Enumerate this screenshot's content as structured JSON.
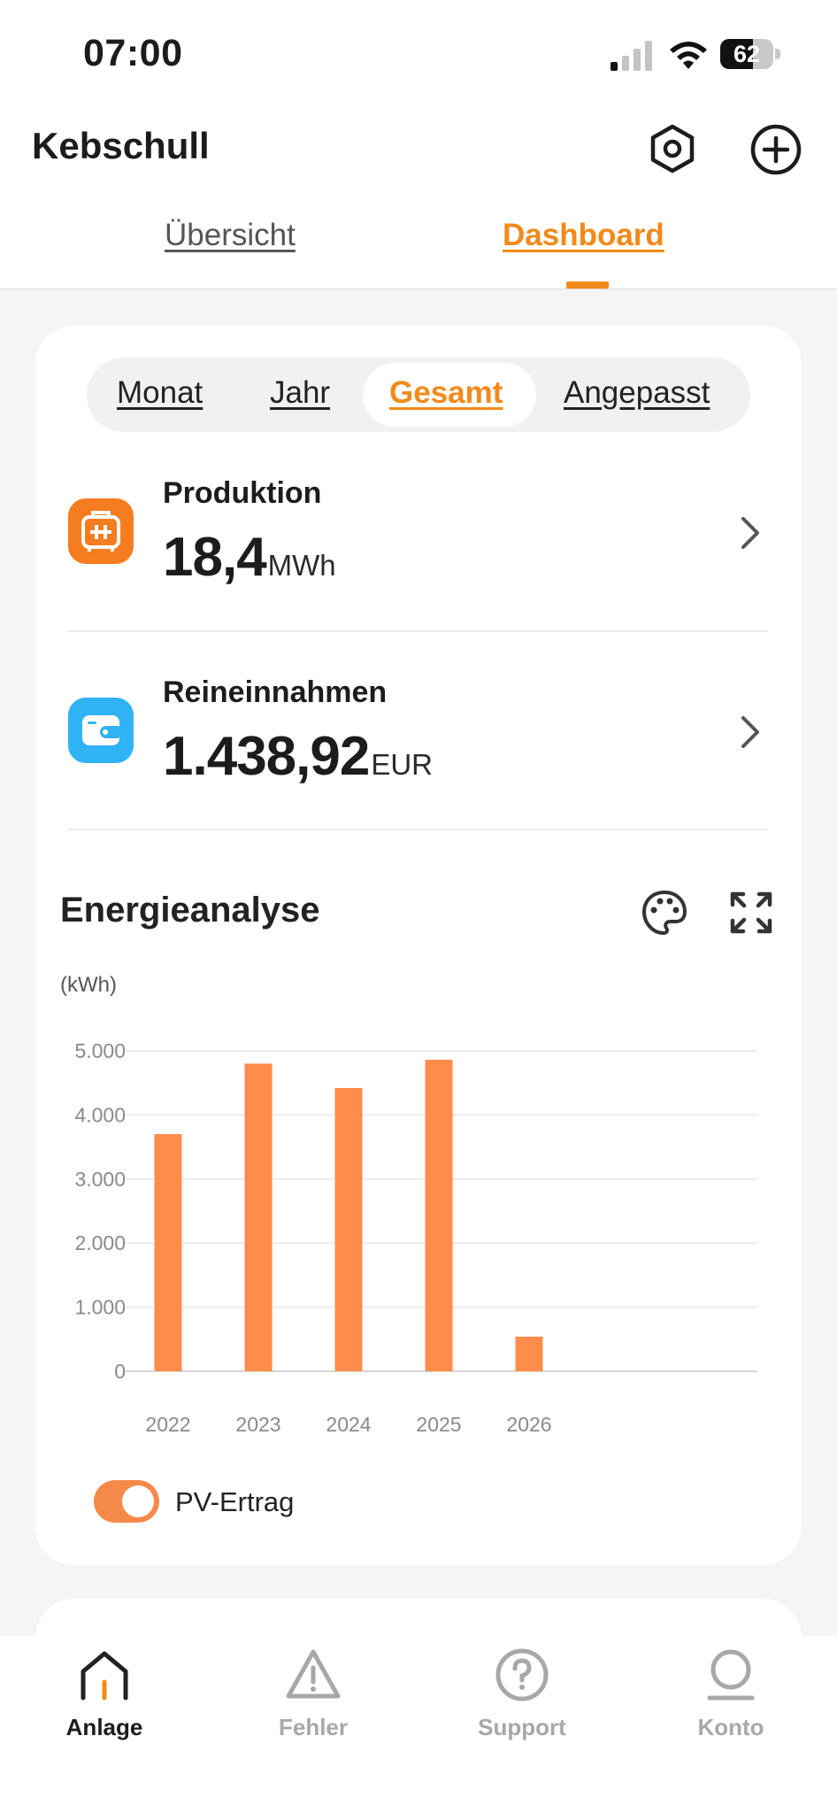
{
  "status_bar": {
    "time": "07:00",
    "battery": "62",
    "battery_level": 0.62
  },
  "header": {
    "title": "Kebschull"
  },
  "icons": {
    "settings": "hexagon-gear-icon",
    "add": "plus-circle-icon",
    "production": "solar-panel-icon",
    "revenue": "wallet-icon",
    "palette": "palette-icon",
    "expand": "expand-icon"
  },
  "tabs": [
    {
      "label": "Übersicht",
      "active": false
    },
    {
      "label": "Dashboard",
      "active": true
    }
  ],
  "period_selector": {
    "options": [
      "Monat",
      "Jahr",
      "Gesamt",
      "Angepasst"
    ],
    "selected": "Gesamt"
  },
  "metrics": {
    "production": {
      "label": "Produktion",
      "value": "18,4",
      "unit": "MWh"
    },
    "revenue": {
      "label": "Reineinnahmen",
      "value": "1.438,92",
      "unit": "EUR"
    }
  },
  "analysis": {
    "title": "Energieanalyse"
  },
  "chart_data": {
    "type": "bar",
    "ylabel": "(kWh)",
    "categories": [
      "2022",
      "2023",
      "2024",
      "2025",
      "2026"
    ],
    "values": [
      3700,
      4800,
      4420,
      4860,
      540
    ],
    "ylim": [
      0,
      5000
    ],
    "yticks": [
      0,
      1000,
      2000,
      3000,
      4000,
      5000
    ],
    "ytick_labels": [
      "0",
      "1.000",
      "2.000",
      "3.000",
      "4.000",
      "5.000"
    ],
    "grid": true,
    "series": [
      {
        "name": "PV-Ertrag",
        "values": [
          3700,
          4800,
          4420,
          4860,
          540
        ]
      }
    ],
    "bar_color": "#ff8c4a"
  },
  "legend": {
    "label": "PV-Ertrag",
    "enabled": true
  },
  "colors": {
    "accent": "#f28a1a",
    "bar": "#ff8c4a",
    "revenue_icon": "#2fb3f5"
  },
  "bottom_nav": [
    {
      "label": "Anlage",
      "icon": "home-icon",
      "active": true
    },
    {
      "label": "Fehler",
      "icon": "warning-icon",
      "active": false
    },
    {
      "label": "Support",
      "icon": "help-icon",
      "active": false
    },
    {
      "label": "Konto",
      "icon": "account-icon",
      "active": false
    }
  ]
}
